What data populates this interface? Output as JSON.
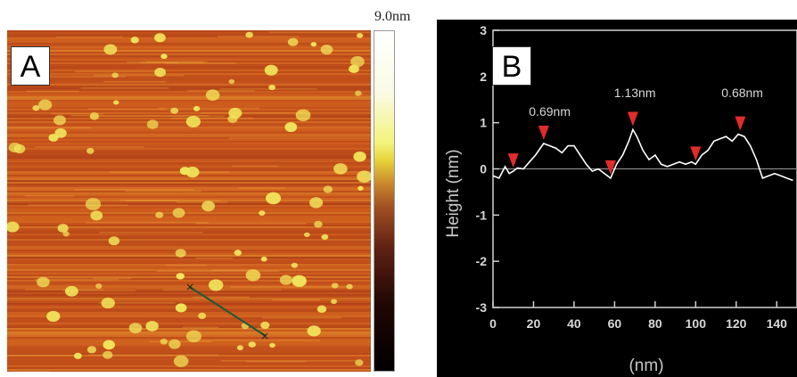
{
  "panel_a": {
    "label": "A",
    "colorbar_max": "9.0nm",
    "colors": {
      "background": "#c8561c",
      "particle": "#f0e45a",
      "line": "#1a5a3a"
    }
  },
  "panel_b": {
    "label": "B",
    "colors": {
      "background": "#000000",
      "line": "#ffffff",
      "marker": "#e32b2b",
      "zero_line": "#9a9a9a"
    }
  },
  "chart_data": {
    "type": "line",
    "title": "",
    "xlabel": "(nm)",
    "ylabel": "Height (nm)",
    "xlim": [
      0,
      150
    ],
    "ylim": [
      -3,
      3
    ],
    "x_ticks": [
      0,
      20,
      40,
      60,
      80,
      100,
      120,
      140
    ],
    "y_ticks": [
      -3,
      -2,
      -1,
      0,
      1,
      2,
      3
    ],
    "series": [
      {
        "x": [
          0,
          3,
          6,
          8,
          10,
          12,
          15,
          18,
          21,
          25,
          28,
          31,
          34,
          37,
          40,
          43,
          46,
          49,
          52,
          55,
          58,
          61,
          64,
          67,
          69,
          71,
          74,
          77,
          80,
          83,
          86,
          89,
          92,
          95,
          98,
          100,
          103,
          106,
          109,
          112,
          115,
          118,
          121,
          124,
          127,
          130,
          133,
          136,
          139,
          142,
          145,
          148
        ],
        "y": [
          -0.15,
          -0.2,
          0.05,
          -0.1,
          -0.05,
          0.02,
          0.0,
          0.15,
          0.3,
          0.55,
          0.5,
          0.45,
          0.35,
          0.5,
          0.5,
          0.3,
          0.1,
          -0.05,
          0.0,
          -0.1,
          -0.2,
          0.1,
          0.3,
          0.6,
          0.85,
          0.7,
          0.4,
          0.2,
          0.3,
          0.1,
          0.05,
          0.1,
          0.15,
          0.1,
          0.15,
          0.1,
          0.3,
          0.4,
          0.6,
          0.65,
          0.7,
          0.6,
          0.75,
          0.7,
          0.5,
          0.2,
          -0.2,
          -0.15,
          -0.1,
          -0.15,
          -0.2,
          -0.25
        ]
      }
    ],
    "markers": [
      {
        "x": 10,
        "y": -0.05
      },
      {
        "x": 25,
        "y": 0.55
      },
      {
        "x": 58,
        "y": -0.2
      },
      {
        "x": 69,
        "y": 0.85
      },
      {
        "x": 100,
        "y": 0.1
      },
      {
        "x": 122,
        "y": 0.75
      }
    ],
    "annotations": [
      {
        "text": "0.69nm",
        "x": 28,
        "y": 1.15
      },
      {
        "text": "1.13nm",
        "x": 70,
        "y": 1.55
      },
      {
        "text": "0.68nm",
        "x": 123,
        "y": 1.55
      }
    ]
  }
}
